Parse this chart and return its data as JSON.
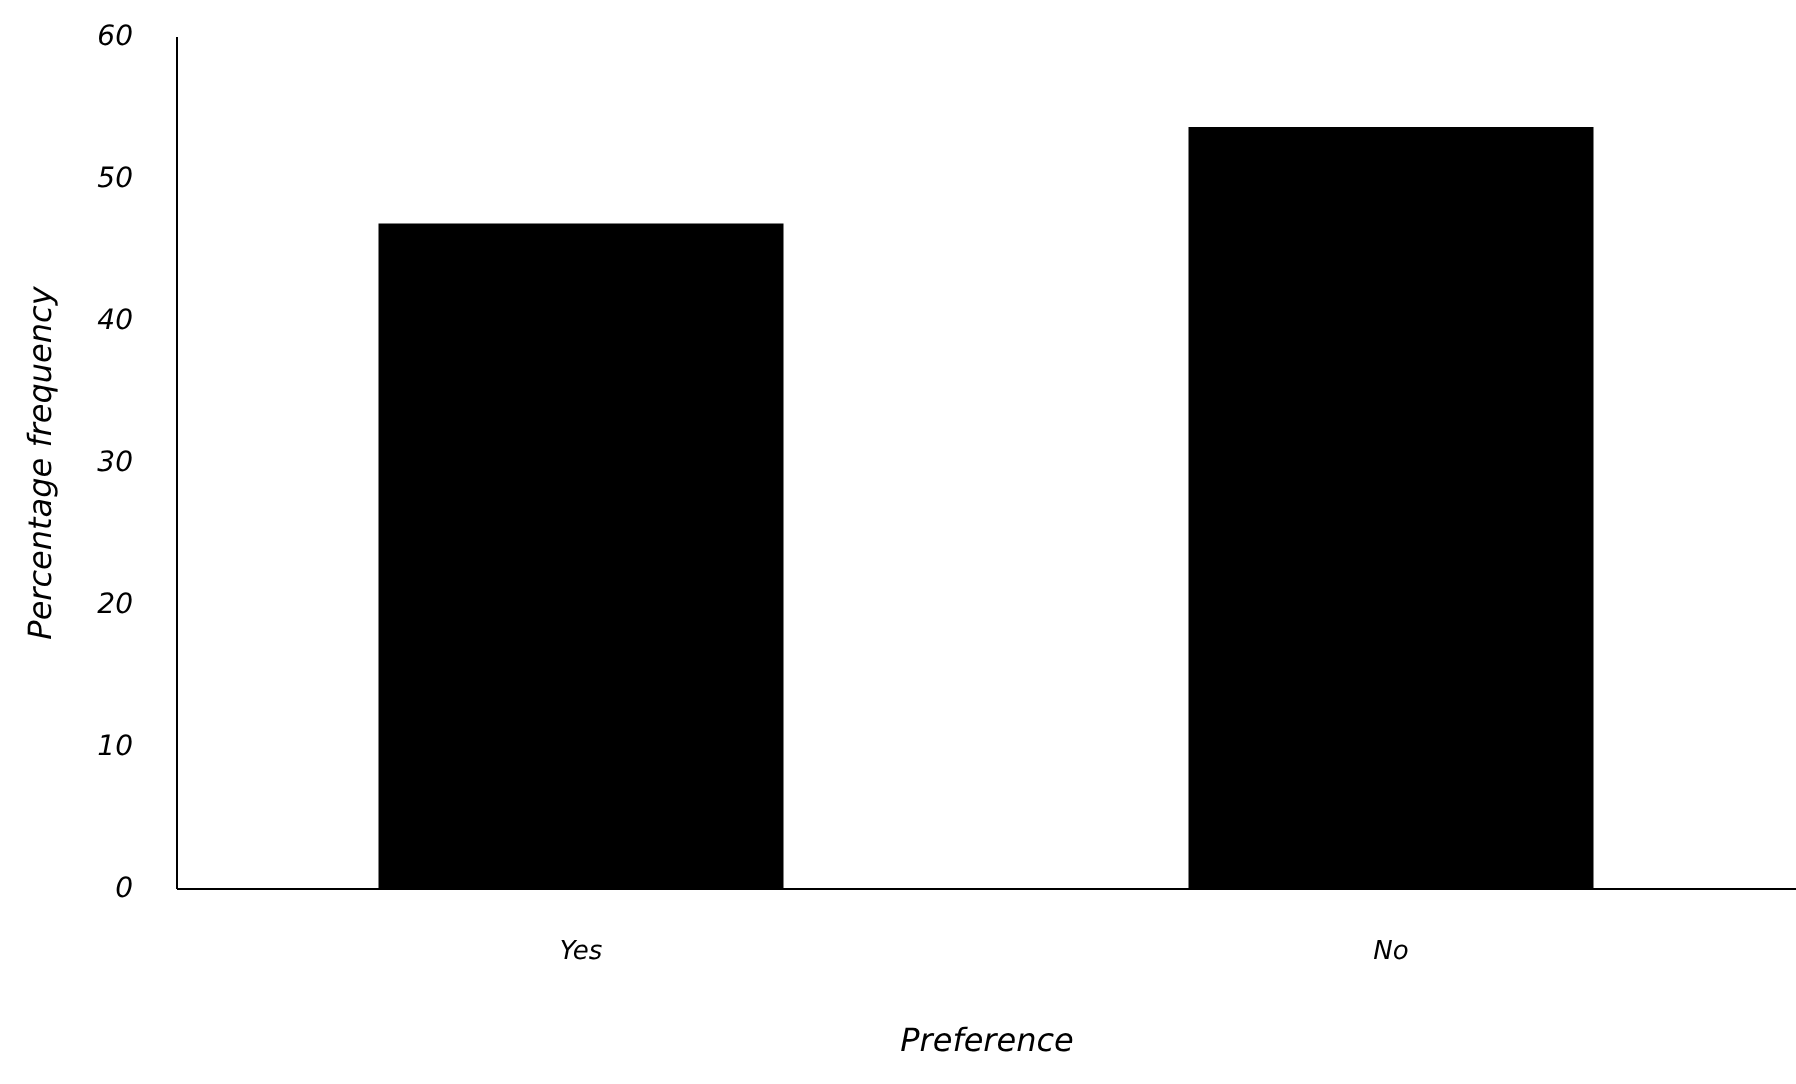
{
  "chart_data": {
    "type": "bar",
    "xlabel": "Preference",
    "ylabel": "Percentage frequency",
    "categories": [
      "Yes",
      "No"
    ],
    "values": [
      46.8,
      53.6
    ],
    "color": "#000000",
    "ylim": [
      0,
      60
    ],
    "yticks": [
      0,
      10,
      20,
      30,
      40,
      50,
      60
    ],
    "grid": false
  }
}
